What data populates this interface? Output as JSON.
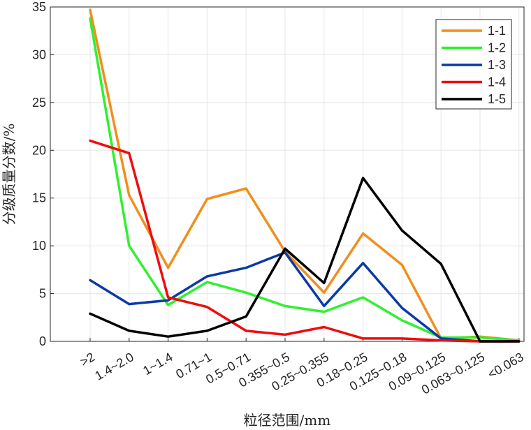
{
  "chart_data": {
    "type": "line",
    "title": "",
    "xlabel": "粒径范围/mm",
    "ylabel": "分级质量分数/%",
    "categories": [
      ">2",
      "1.4~2.0",
      "1~1.4",
      "0.71~1",
      "0.5~0.71",
      "0.355~0.5",
      "0.25~0.355",
      "0.18~0.25",
      "0.125~0.18",
      "0.09~0.125",
      "0.063~0.125",
      "<0.063"
    ],
    "ylim": [
      0,
      35
    ],
    "yticks": [
      "0",
      "5",
      "10",
      "15",
      "20",
      "25",
      "30",
      "35"
    ],
    "grid": true,
    "legend_position": "top-right",
    "series": [
      {
        "name": "1-1",
        "color": "#f28e1c",
        "values": [
          34.7,
          15.3,
          7.7,
          14.9,
          16.0,
          9.4,
          5.1,
          11.3,
          8.0,
          0.3,
          0.5,
          0.1
        ]
      },
      {
        "name": "1-2",
        "color": "#2ff12f",
        "values": [
          33.8,
          10.0,
          3.8,
          6.2,
          5.1,
          3.7,
          3.1,
          4.6,
          2.2,
          0.4,
          0.4,
          0.1
        ]
      },
      {
        "name": "1-3",
        "color": "#0a3aa8",
        "values": [
          6.4,
          3.9,
          4.3,
          6.8,
          7.7,
          9.3,
          3.7,
          8.2,
          3.5,
          0.3,
          0.0,
          0.0
        ]
      },
      {
        "name": "1-4",
        "color": "#f00c0c",
        "values": [
          21.0,
          19.7,
          4.6,
          3.6,
          1.1,
          0.7,
          1.5,
          0.3,
          0.3,
          0.1,
          0.0,
          0.0
        ]
      },
      {
        "name": "1-5",
        "color": "#000000",
        "values": [
          2.9,
          1.1,
          0.5,
          1.1,
          2.6,
          9.7,
          6.1,
          17.1,
          11.6,
          8.1,
          0.0,
          0.0
        ]
      }
    ]
  }
}
